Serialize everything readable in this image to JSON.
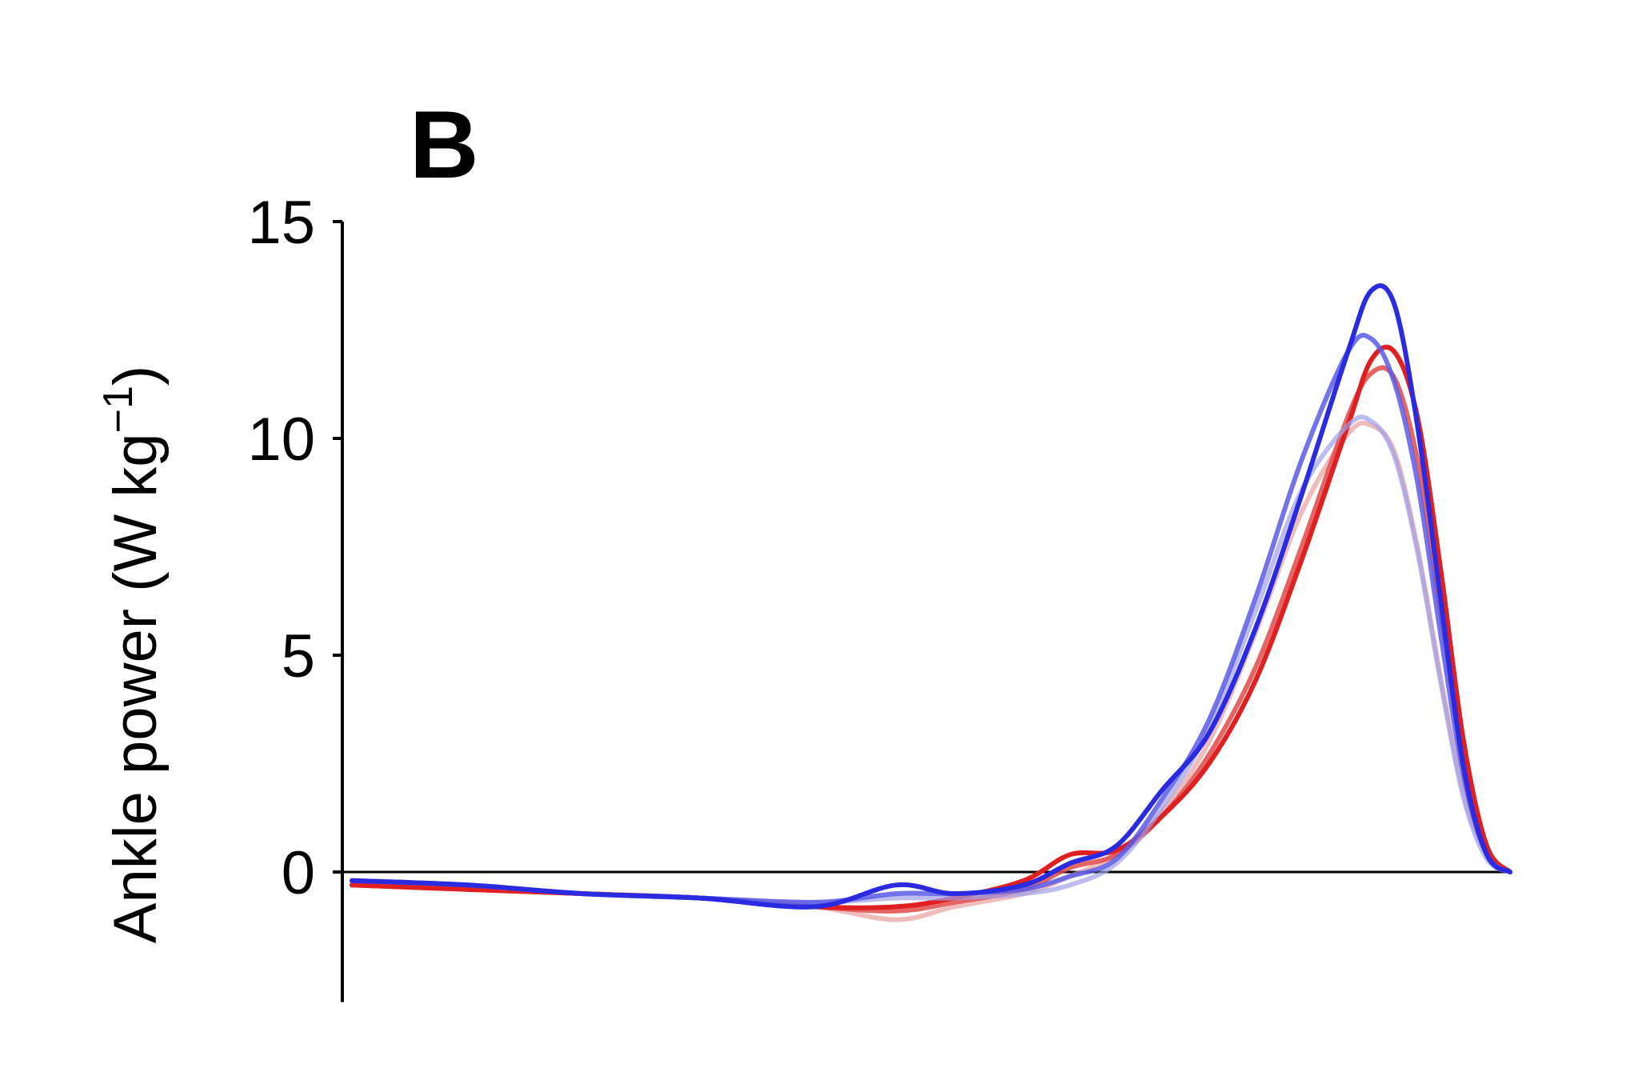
{
  "chart_data": {
    "type": "line",
    "panel_label": "B",
    "ylabel": {
      "main": "Ankle power (W kg",
      "sup": "−1",
      "close": ")"
    },
    "xlabel": "",
    "ylim": [
      -3,
      15
    ],
    "xlim": [
      0,
      100
    ],
    "yticks": [
      {
        "value": 15,
        "label": "15"
      },
      {
        "value": 10,
        "label": "10"
      },
      {
        "value": 5,
        "label": "5"
      },
      {
        "value": 0,
        "label": "0"
      }
    ],
    "zero_line": true,
    "grid": false,
    "legend": "none",
    "series": [
      {
        "color": "#e8a0a0",
        "opacity": 0.7,
        "x": [
          0,
          10,
          20,
          30,
          40,
          47,
          52,
          58,
          62,
          66,
          70,
          74,
          78,
          82,
          86,
          88,
          90,
          92,
          94,
          96,
          98,
          100
        ],
        "y": [
          -0.3,
          -0.4,
          -0.5,
          -0.6,
          -0.8,
          -1.1,
          -0.8,
          -0.5,
          -0.1,
          0.4,
          1.4,
          3.0,
          5.5,
          8.3,
          10.1,
          10.3,
          9.7,
          7.5,
          4.5,
          1.8,
          0.4,
          0
        ]
      },
      {
        "color": "#e04a4a",
        "opacity": 0.85,
        "x": [
          0,
          10,
          20,
          30,
          40,
          47,
          52,
          58,
          62,
          66,
          70,
          74,
          78,
          82,
          86,
          88,
          90,
          92,
          94,
          96,
          98,
          100
        ],
        "y": [
          -0.3,
          -0.4,
          -0.5,
          -0.6,
          -0.8,
          -0.9,
          -0.7,
          -0.4,
          0.1,
          0.4,
          1.3,
          2.7,
          4.7,
          7.5,
          10.5,
          11.5,
          11.4,
          9.5,
          6.0,
          2.5,
          0.5,
          0
        ]
      },
      {
        "color": "#e02020",
        "opacity": 1,
        "x": [
          0,
          10,
          20,
          30,
          40,
          47,
          52,
          58,
          62,
          66,
          70,
          74,
          78,
          82,
          86,
          88,
          90,
          92,
          94,
          96,
          98,
          100
        ],
        "y": [
          -0.3,
          -0.4,
          -0.5,
          -0.6,
          -0.8,
          -0.8,
          -0.6,
          -0.2,
          0.4,
          0.5,
          1.3,
          2.5,
          4.4,
          7.2,
          10.3,
          11.8,
          12.0,
          10.5,
          7.0,
          3.0,
          0.6,
          0
        ]
      },
      {
        "color": "#a0a0e8",
        "opacity": 0.7,
        "x": [
          0,
          10,
          20,
          30,
          40,
          47,
          52,
          58,
          62,
          66,
          70,
          74,
          78,
          82,
          86,
          88,
          90,
          92,
          94,
          96,
          98,
          100
        ],
        "y": [
          -0.2,
          -0.3,
          -0.5,
          -0.6,
          -0.7,
          -0.6,
          -0.6,
          -0.5,
          -0.3,
          0.2,
          1.5,
          3.3,
          6.0,
          8.8,
          10.3,
          10.4,
          9.6,
          7.4,
          4.4,
          1.7,
          0.3,
          0
        ]
      },
      {
        "color": "#5a5ae8",
        "opacity": 0.85,
        "x": [
          0,
          10,
          20,
          30,
          40,
          47,
          52,
          58,
          62,
          66,
          70,
          74,
          78,
          82,
          86,
          88,
          90,
          92,
          94,
          96,
          98,
          100
        ],
        "y": [
          -0.2,
          -0.3,
          -0.5,
          -0.6,
          -0.7,
          -0.5,
          -0.5,
          -0.4,
          -0.1,
          0.3,
          1.7,
          3.5,
          6.3,
          9.5,
          12.0,
          12.3,
          11.3,
          9.0,
          5.5,
          2.2,
          0.4,
          0
        ]
      },
      {
        "color": "#2a2ae0",
        "opacity": 1,
        "x": [
          0,
          10,
          20,
          30,
          40,
          47,
          52,
          58,
          62,
          66,
          70,
          74,
          78,
          82,
          86,
          88,
          90,
          92,
          94,
          96,
          98,
          100
        ],
        "y": [
          -0.2,
          -0.3,
          -0.5,
          -0.6,
          -0.8,
          -0.3,
          -0.5,
          -0.3,
          0.2,
          0.6,
          1.9,
          3.2,
          5.6,
          8.7,
          12.0,
          13.4,
          13.1,
          10.3,
          6.3,
          2.4,
          0.4,
          0
        ]
      }
    ]
  }
}
